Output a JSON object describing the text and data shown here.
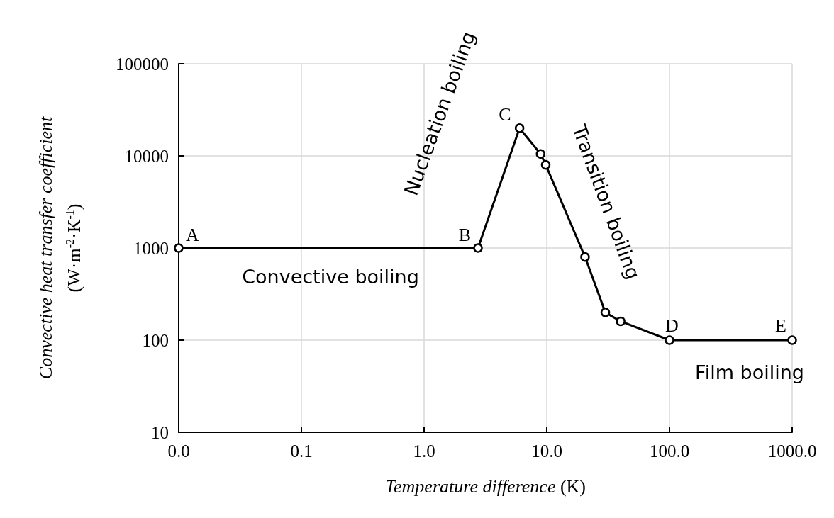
{
  "chart_data": {
    "type": "line",
    "xlabel": "Temperature difference (K)",
    "ylabel": "Convective heat transfer coefficient (W·m$^{-2}$·K$^{-1}$)",
    "x": [
      0.01,
      2.75,
      6,
      8.9,
      9.8,
      20.5,
      30,
      40,
      100,
      1000
    ],
    "series": [
      {
        "color": "#000000",
        "values": [
          1000,
          1000,
          20000,
          10500,
          8000,
          800,
          200,
          160,
          100,
          100
        ]
      }
    ],
    "log": "xy",
    "xlim": [
      0.01,
      1000
    ],
    "ylim": [
      10,
      100000
    ],
    "xticks": [
      {
        "value": 0.01,
        "label": "0.0"
      },
      0.1,
      {
        "value": 1,
        "label": "1.0"
      },
      {
        "value": 10,
        "label": "10.0"
      },
      {
        "value": 100,
        "label": "100.0"
      },
      {
        "value": 1000,
        "label": "1000.0"
      }
    ],
    "yticks": [
      10,
      100,
      1000,
      10000,
      100000
    ],
    "grid": true,
    "marker": "circle",
    "line_style": "solid",
    "annotations": [
      {
        "text": "A",
        "x": 0.01,
        "y": 1000
      },
      {
        "text": "B",
        "x": 2.75,
        "y": 1000
      },
      {
        "text": "C",
        "x": 6,
        "y": 20000
      },
      {
        "text": "D",
        "x": 100,
        "y": 100
      },
      {
        "text": "E",
        "x": 1000,
        "y": 100
      },
      "Convective boiling",
      "Nucleation boiling",
      "Transition boiling",
      "Film boiling"
    ]
  }
}
